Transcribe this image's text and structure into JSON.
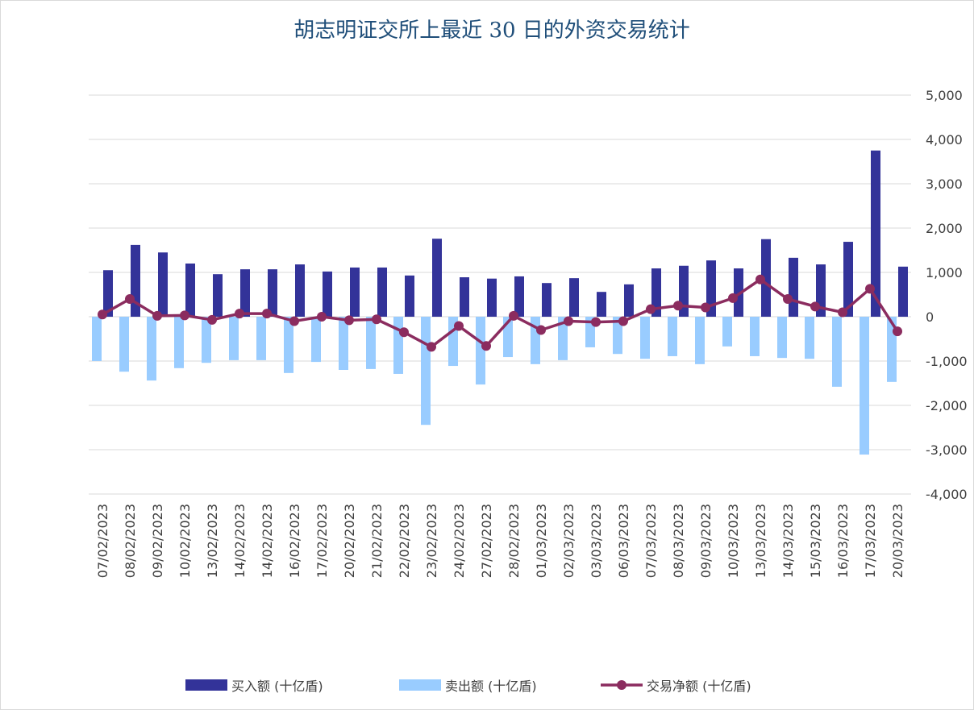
{
  "chart_data": {
    "type": "bar_line",
    "title": "胡志明证交所上最近 30 日的外资交易统计",
    "categories": [
      "07/02/2023",
      "08/02/2023",
      "09/02/2023",
      "10/02/2023",
      "13/02/2023",
      "14/02/2023",
      "14/02/2023",
      "16/02/2023",
      "17/02/2023",
      "20/02/2023",
      "21/02/2023",
      "22/02/2023",
      "23/02/2023",
      "24/02/2023",
      "27/02/2023",
      "28/02/2023",
      "01/03/2023",
      "02/03/2023",
      "03/03/2023",
      "06/03/2023",
      "07/03/2023",
      "08/03/2023",
      "09/03/2023",
      "10/03/2023",
      "13/03/2023",
      "14/03/2023",
      "15/03/2023",
      "16/03/2023",
      "17/03/2023",
      "20/03/2023"
    ],
    "series": [
      {
        "name": "买入额 (十亿盾)",
        "type": "bar",
        "color": "#333399",
        "values": [
          1050,
          1620,
          1450,
          1200,
          960,
          1070,
          1070,
          1180,
          1020,
          1110,
          1110,
          930,
          1760,
          890,
          860,
          910,
          760,
          870,
          560,
          730,
          1090,
          1150,
          1270,
          1090,
          1750,
          1330,
          1180,
          1690,
          3750,
          1130
        ]
      },
      {
        "name": "卖出额 (十亿盾)",
        "type": "bar",
        "color": "#99ccff",
        "values": [
          -1000,
          -1240,
          -1440,
          -1160,
          -1040,
          -980,
          -980,
          -1270,
          -1020,
          -1200,
          -1180,
          -1290,
          -2440,
          -1110,
          -1530,
          -910,
          -1070,
          -980,
          -690,
          -840,
          -950,
          -890,
          -1070,
          -670,
          -890,
          -930,
          -950,
          -1580,
          -3110,
          -1470
        ]
      },
      {
        "name": "交易净额 (十亿盾)",
        "type": "line",
        "color": "#8b2c5f",
        "values": [
          50,
          400,
          20,
          30,
          -70,
          70,
          70,
          -100,
          0,
          -80,
          -60,
          -350,
          -680,
          -210,
          -660,
          20,
          -300,
          -100,
          -120,
          -100,
          170,
          250,
          210,
          420,
          840,
          400,
          230,
          100,
          630,
          -330
        ]
      }
    ],
    "ylim": [
      -4000,
      5000
    ],
    "yticks": [
      {
        "value": -4000,
        "label": "-4,000"
      },
      {
        "value": -3000,
        "label": "-3,000"
      },
      {
        "value": -2000,
        "label": "-2,000"
      },
      {
        "value": -1000,
        "label": "-1,000"
      },
      0,
      {
        "value": 1000,
        "label": "1,000"
      },
      {
        "value": 2000,
        "label": "2,000"
      },
      {
        "value": 3000,
        "label": "3,000"
      },
      {
        "value": 4000,
        "label": "4,000"
      },
      {
        "value": 5000,
        "label": "5,000"
      }
    ],
    "grid": true
  }
}
